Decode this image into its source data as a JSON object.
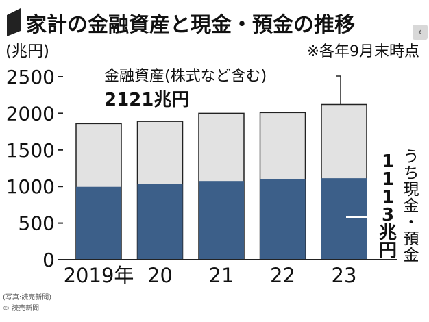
{
  "chart_data": {
    "type": "bar",
    "title": "家計の金融資産と現金・預金の推移",
    "note": "※各年9月末時点",
    "unit_label": "(兆円)",
    "categories": [
      "2019年",
      "20",
      "21",
      "22",
      "23"
    ],
    "ylim": [
      0,
      2500
    ],
    "yticks": [
      0,
      500,
      1000,
      1500,
      2000,
      2500
    ],
    "series": [
      {
        "name": "金融資産(株式など含む)",
        "values": [
          1860,
          1890,
          2000,
          2010,
          2121
        ]
      },
      {
        "name": "うち現金・預金",
        "values": [
          995,
          1035,
          1075,
          1100,
          1113
        ]
      }
    ],
    "annotations": {
      "total_label": "金融資産(株式など含む)",
      "total_value": "2121兆円",
      "cash_label": "うち現金・預金",
      "cash_value": "1113兆円"
    },
    "colors": {
      "total": "#e2e2e2",
      "cash": "#3c5f89",
      "title_marker": "#222222"
    }
  },
  "credit": {
    "line1": "(写真:読売新聞)",
    "line2": "© 読売新聞"
  },
  "nav": {
    "icon": "chevron-left-icon",
    "glyph": "‹"
  }
}
